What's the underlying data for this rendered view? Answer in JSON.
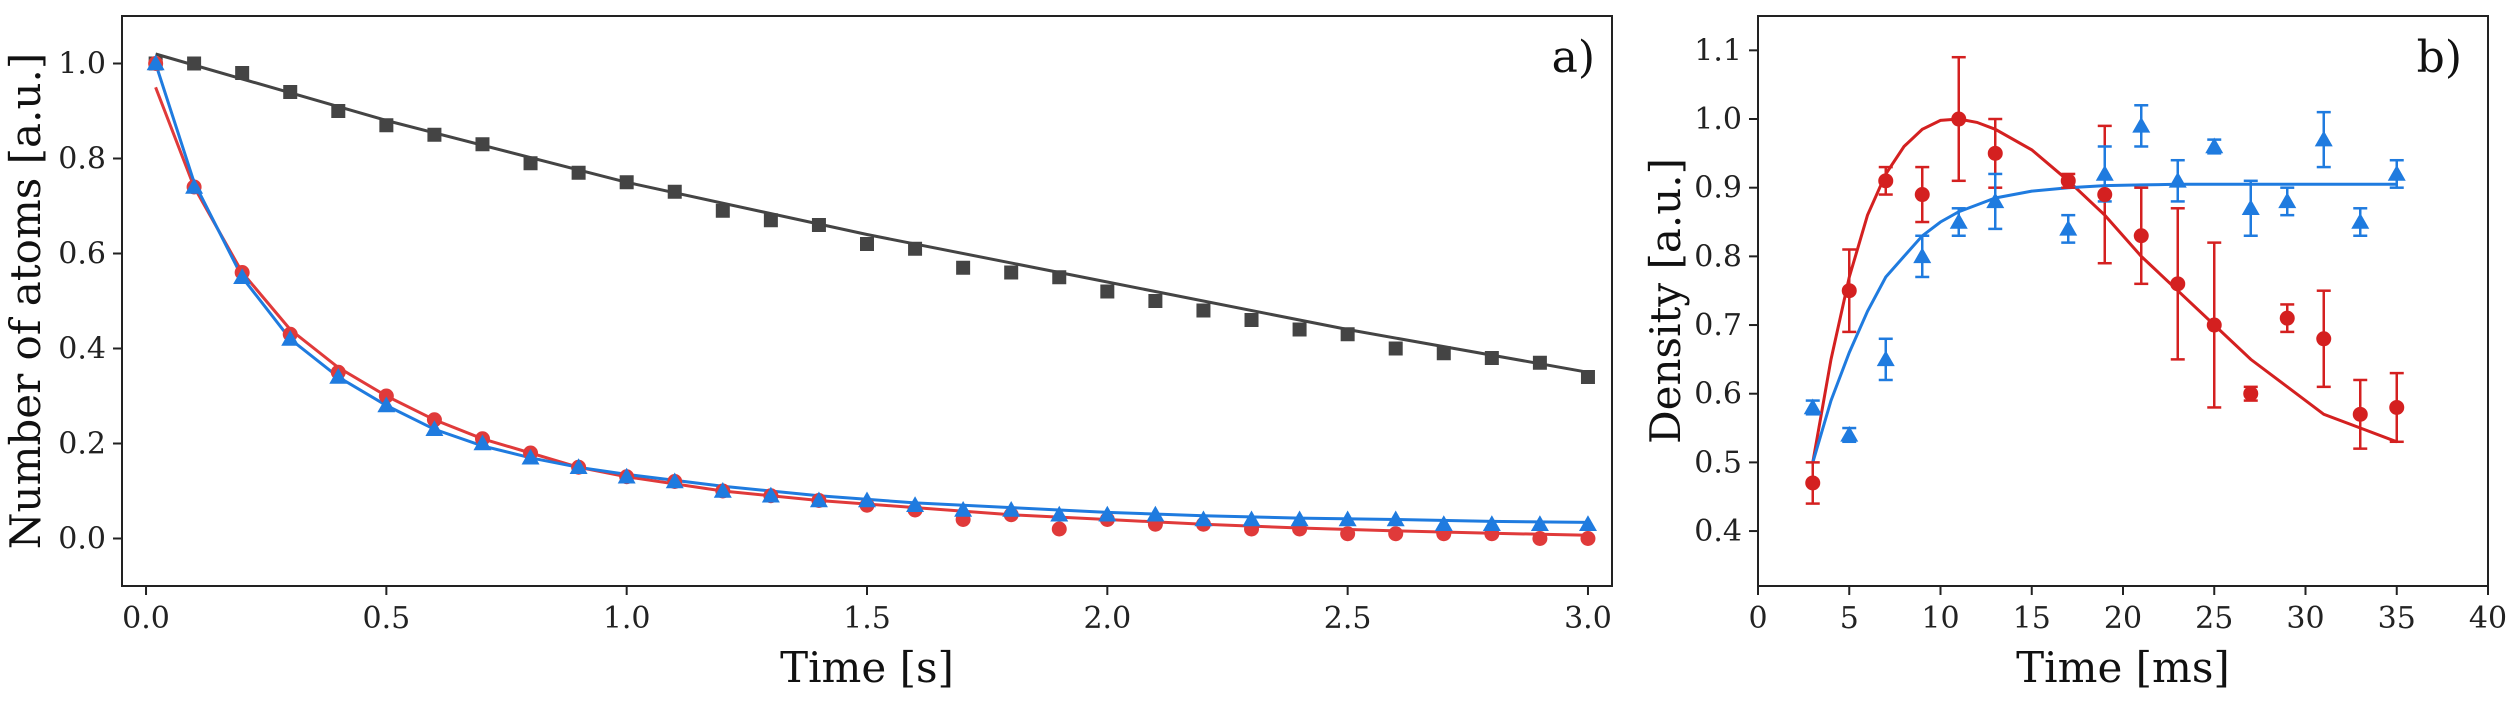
{
  "chart_data": [
    {
      "type": "scatter",
      "panel_label": "a)",
      "xlabel": "Time [s]",
      "ylabel": "Number of atoms [a.u.]",
      "xlim": [
        -0.05,
        3.05
      ],
      "ylim": [
        -0.1,
        1.1
      ],
      "xticks": [
        0.0,
        0.5,
        1.0,
        1.5,
        2.0,
        2.5,
        3.0
      ],
      "xtick_labels": [
        "0.0",
        "0.5",
        "1.0",
        "1.5",
        "2.0",
        "2.5",
        "3.0"
      ],
      "yticks": [
        0.0,
        0.2,
        0.4,
        0.6,
        0.8,
        1.0
      ],
      "ytick_labels": [
        "0.0",
        "0.2",
        "0.4",
        "0.6",
        "0.8",
        "1.0"
      ],
      "series": [
        {
          "name": "gray-squares",
          "color": "#444444",
          "marker": "square",
          "x": [
            0.02,
            0.1,
            0.2,
            0.3,
            0.4,
            0.5,
            0.6,
            0.7,
            0.8,
            0.9,
            1.0,
            1.1,
            1.2,
            1.3,
            1.4,
            1.5,
            1.6,
            1.7,
            1.8,
            1.9,
            2.0,
            2.1,
            2.2,
            2.3,
            2.4,
            2.5,
            2.6,
            2.7,
            2.8,
            2.9,
            3.0
          ],
          "y": [
            1.0,
            1.0,
            0.98,
            0.94,
            0.9,
            0.87,
            0.85,
            0.83,
            0.79,
            0.77,
            0.75,
            0.73,
            0.69,
            0.67,
            0.66,
            0.62,
            0.61,
            0.57,
            0.56,
            0.55,
            0.52,
            0.5,
            0.48,
            0.46,
            0.44,
            0.43,
            0.4,
            0.39,
            0.38,
            0.37,
            0.34
          ],
          "fit": {
            "x": [
              0.02,
              0.5,
              1.0,
              1.5,
              2.0,
              2.5,
              3.0
            ],
            "y": [
              1.02,
              0.88,
              0.75,
              0.64,
              0.54,
              0.44,
              0.35
            ]
          }
        },
        {
          "name": "red-circles",
          "color": "#e03a3a",
          "marker": "circle",
          "x": [
            0.02,
            0.1,
            0.2,
            0.3,
            0.4,
            0.5,
            0.6,
            0.7,
            0.8,
            0.9,
            1.0,
            1.1,
            1.2,
            1.3,
            1.4,
            1.5,
            1.6,
            1.7,
            1.8,
            1.9,
            2.0,
            2.1,
            2.2,
            2.3,
            2.4,
            2.5,
            2.6,
            2.7,
            2.8,
            2.9,
            3.0
          ],
          "y": [
            1.0,
            0.74,
            0.56,
            0.43,
            0.35,
            0.3,
            0.25,
            0.21,
            0.18,
            0.15,
            0.13,
            0.12,
            0.1,
            0.09,
            0.08,
            0.07,
            0.06,
            0.04,
            0.05,
            0.02,
            0.04,
            0.03,
            0.03,
            0.02,
            0.02,
            0.01,
            0.01,
            0.01,
            0.01,
            0.0,
            0.0
          ],
          "fit": {
            "x": [
              0.02,
              0.1,
              0.2,
              0.3,
              0.4,
              0.5,
              0.6,
              0.7,
              0.8,
              0.9,
              1.0,
              1.2,
              1.4,
              1.6,
              1.8,
              2.0,
              2.2,
              2.4,
              2.6,
              2.8,
              3.0
            ],
            "y": [
              0.95,
              0.74,
              0.56,
              0.44,
              0.36,
              0.3,
              0.25,
              0.21,
              0.18,
              0.15,
              0.13,
              0.1,
              0.08,
              0.065,
              0.05,
              0.04,
              0.03,
              0.022,
              0.016,
              0.011,
              0.007
            ]
          }
        },
        {
          "name": "blue-triangles",
          "color": "#1f7bdf",
          "marker": "triangle",
          "x": [
            0.02,
            0.1,
            0.2,
            0.3,
            0.4,
            0.5,
            0.6,
            0.7,
            0.8,
            0.9,
            1.0,
            1.1,
            1.2,
            1.3,
            1.4,
            1.5,
            1.6,
            1.7,
            1.8,
            1.9,
            2.0,
            2.1,
            2.2,
            2.3,
            2.4,
            2.5,
            2.6,
            2.7,
            2.8,
            2.9,
            3.0
          ],
          "y": [
            1.0,
            0.74,
            0.55,
            0.42,
            0.34,
            0.28,
            0.23,
            0.2,
            0.17,
            0.15,
            0.13,
            0.12,
            0.1,
            0.09,
            0.08,
            0.08,
            0.07,
            0.06,
            0.06,
            0.05,
            0.05,
            0.05,
            0.04,
            0.04,
            0.04,
            0.04,
            0.04,
            0.03,
            0.03,
            0.03,
            0.03
          ],
          "fit": {
            "x": [
              0.02,
              0.1,
              0.2,
              0.3,
              0.4,
              0.5,
              0.6,
              0.7,
              0.8,
              0.9,
              1.0,
              1.2,
              1.4,
              1.6,
              1.8,
              2.0,
              2.2,
              2.4,
              2.6,
              2.8,
              3.0
            ],
            "y": [
              1.0,
              0.75,
              0.55,
              0.42,
              0.34,
              0.28,
              0.23,
              0.195,
              0.17,
              0.15,
              0.135,
              0.11,
              0.09,
              0.075,
              0.065,
              0.055,
              0.048,
              0.043,
              0.04,
              0.036,
              0.034
            ]
          }
        }
      ]
    },
    {
      "type": "scatter",
      "panel_label": "b)",
      "xlabel": "Time [ms]",
      "ylabel": "Density [a.u.]",
      "xlim": [
        0,
        40
      ],
      "ylim": [
        0.32,
        1.15
      ],
      "xticks": [
        0,
        5,
        10,
        15,
        20,
        25,
        30,
        35,
        40
      ],
      "xtick_labels": [
        "0",
        "5",
        "10",
        "15",
        "20",
        "25",
        "30",
        "35",
        "40"
      ],
      "yticks": [
        0.4,
        0.5,
        0.6,
        0.7,
        0.8,
        0.9,
        1.0,
        1.1
      ],
      "ytick_labels": [
        "0.4",
        "0.5",
        "0.6",
        "0.7",
        "0.8",
        "0.9",
        "1.0",
        "1.1"
      ],
      "series": [
        {
          "name": "red-circles",
          "color": "#d42020",
          "marker": "circle",
          "x": [
            3,
            5,
            7,
            9,
            11,
            13,
            17,
            19,
            21,
            23,
            25,
            27,
            29,
            31,
            33,
            35
          ],
          "y": [
            0.47,
            0.75,
            0.91,
            0.89,
            1.0,
            0.95,
            0.91,
            0.89,
            0.83,
            0.76,
            0.7,
            0.6,
            0.71,
            0.68,
            0.57,
            0.58
          ],
          "err": [
            0.03,
            0.06,
            0.02,
            0.04,
            0.09,
            0.05,
            0.01,
            0.1,
            0.07,
            0.11,
            0.12,
            0.01,
            0.02,
            0.07,
            0.05,
            0.05
          ],
          "fit": {
            "x": [
              3,
              4,
              5,
              6,
              7,
              8,
              9,
              10,
              11,
              12,
              13,
              15,
              17,
              19,
              21,
              23,
              25,
              27,
              29,
              31,
              33,
              35
            ],
            "y": [
              0.5,
              0.65,
              0.77,
              0.86,
              0.92,
              0.96,
              0.985,
              0.998,
              1.0,
              0.995,
              0.985,
              0.955,
              0.91,
              0.86,
              0.8,
              0.75,
              0.7,
              0.65,
              0.61,
              0.57,
              0.55,
              0.53
            ]
          }
        },
        {
          "name": "blue-triangles",
          "color": "#1f7bdf",
          "marker": "triangle",
          "x": [
            3,
            5,
            7,
            9,
            11,
            13,
            17,
            19,
            21,
            23,
            25,
            27,
            29,
            31,
            33,
            35
          ],
          "y": [
            0.58,
            0.54,
            0.65,
            0.8,
            0.85,
            0.88,
            0.84,
            0.92,
            0.99,
            0.91,
            0.96,
            0.87,
            0.88,
            0.97,
            0.85,
            0.92
          ],
          "err": [
            0.01,
            0.01,
            0.03,
            0.03,
            0.02,
            0.04,
            0.02,
            0.04,
            0.03,
            0.03,
            0.01,
            0.04,
            0.02,
            0.04,
            0.02,
            0.02
          ],
          "fit": {
            "x": [
              3,
              4,
              5,
              6,
              7,
              8,
              9,
              10,
              11,
              12,
              13,
              15,
              17,
              19,
              21,
              23,
              25,
              27,
              29,
              31,
              33,
              35
            ],
            "y": [
              0.5,
              0.59,
              0.66,
              0.72,
              0.77,
              0.8,
              0.83,
              0.85,
              0.865,
              0.875,
              0.885,
              0.895,
              0.9,
              0.903,
              0.904,
              0.905,
              0.905,
              0.905,
              0.905,
              0.905,
              0.905,
              0.905
            ]
          }
        }
      ]
    }
  ]
}
